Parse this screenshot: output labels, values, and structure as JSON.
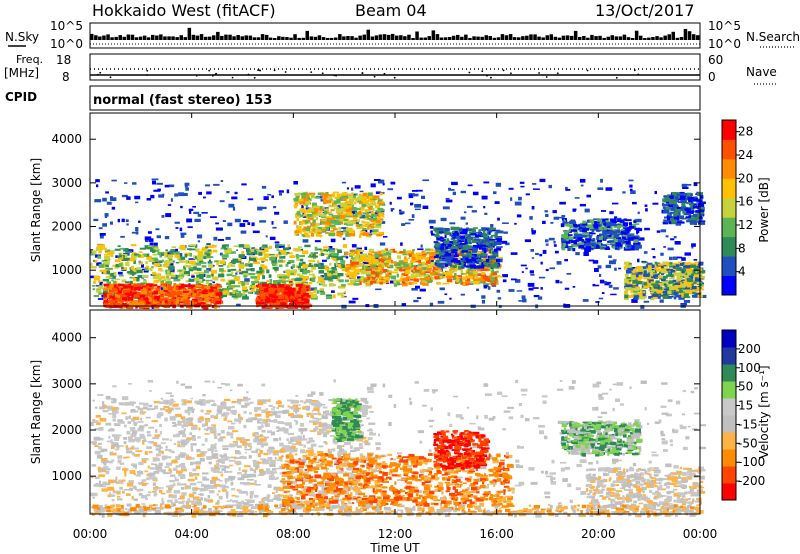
{
  "header": {
    "radar": "Hokkaido West (fitACF)",
    "beam": "Beam 04",
    "date": "13/Oct/2017"
  },
  "noise_panel": {
    "left_label": "N.Sky",
    "left_ticks": [
      "10^5",
      "10^0"
    ],
    "right_label": "N.Search",
    "right_ticks": [
      "10^5",
      "10^0"
    ]
  },
  "freq_panel": {
    "left_label_1": "Freq.",
    "left_label_2": "[MHz]",
    "left_ticks": [
      "18",
      "8"
    ],
    "right_label": "Nave",
    "right_ticks": [
      "60",
      "0"
    ]
  },
  "cpid": {
    "label": "CPID",
    "value": "normal (fast stereo) 153"
  },
  "colors": {
    "power": [
      "#0000ff",
      "#1f4fbf",
      "#2e8b57",
      "#5ab552",
      "#c8d23c",
      "#ffc000",
      "#ff8c00",
      "#ff5000",
      "#ff0000"
    ],
    "velocity": [
      "#ff0000",
      "#ff4500",
      "#ff8c00",
      "#ffb347",
      "#c0c0c0",
      "#c8c8c8",
      "#7fd44f",
      "#2e8b57",
      "#2038a0",
      "#0000c0"
    ]
  },
  "chart_data": [
    {
      "type": "heatmap",
      "title": "",
      "xlabel": "",
      "ylabel": "Slant Range [km]",
      "x_ticks": [
        "00:00",
        "04:00",
        "08:00",
        "12:00",
        "16:00",
        "20:00",
        "00:00"
      ],
      "y_ticks": [
        "1000",
        "2000",
        "3000",
        "4000"
      ],
      "ylim": [
        180,
        4600
      ],
      "colorbar_label": "Power [dB]",
      "colorbar_ticks": [
        "4",
        "8",
        "12",
        "16",
        "20",
        "24",
        "28"
      ],
      "colorbar_range": [
        0,
        30
      ]
    },
    {
      "type": "heatmap",
      "title": "",
      "xlabel": "Time UT",
      "ylabel": "Slant Range [km]",
      "x_ticks": [
        "00:00",
        "04:00",
        "08:00",
        "12:00",
        "16:00",
        "20:00",
        "00:00"
      ],
      "y_ticks": [
        "1000",
        "2000",
        "3000",
        "4000"
      ],
      "ylim": [
        180,
        4600
      ],
      "colorbar_label": "Velocity [m s⁻¹]",
      "colorbar_ticks": [
        "200",
        "100",
        "50",
        "15",
        "-15",
        "-50",
        "-100",
        "-200"
      ]
    }
  ]
}
